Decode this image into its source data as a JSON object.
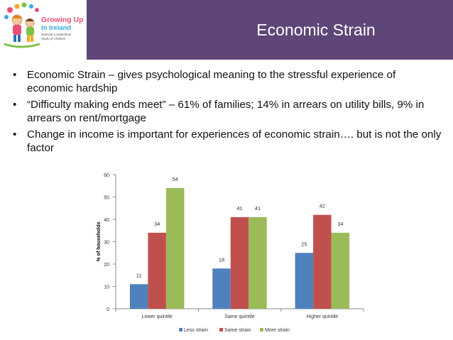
{
  "slide": {
    "title": "Economic Strain",
    "bullets": [
      "Economic Strain – gives psychological meaning to the stressful experience of economic hardship",
      "“Difficulty making ends meet” – 61% of families; 14% in arrears on utility bills, 9% in arrears on rent/mortgage",
      "Change in income is important for experiences of economic strain…. but is not the only factor"
    ]
  },
  "logo": {
    "line1": "Growing Up",
    "line2": "in Ireland",
    "tagline1": "National Longitudinal",
    "tagline2": "Study of Children"
  },
  "chart_data": {
    "type": "bar",
    "categories": [
      "Lower quintile",
      "Same quintile",
      "Higher quintile"
    ],
    "series": [
      {
        "name": "Less strain",
        "values": [
          11,
          18,
          25
        ],
        "color": "#4f81bd"
      },
      {
        "name": "Same strain",
        "values": [
          34,
          41,
          42
        ],
        "color": "#c0504d"
      },
      {
        "name": "More strain",
        "values": [
          54,
          41,
          34
        ],
        "color": "#9bbb59"
      }
    ],
    "ylabel": "% of households",
    "xlabel": "",
    "ylim": [
      0,
      60
    ],
    "yticks": [
      0,
      10,
      20,
      30,
      40,
      50,
      60
    ],
    "legend": "bottom"
  }
}
